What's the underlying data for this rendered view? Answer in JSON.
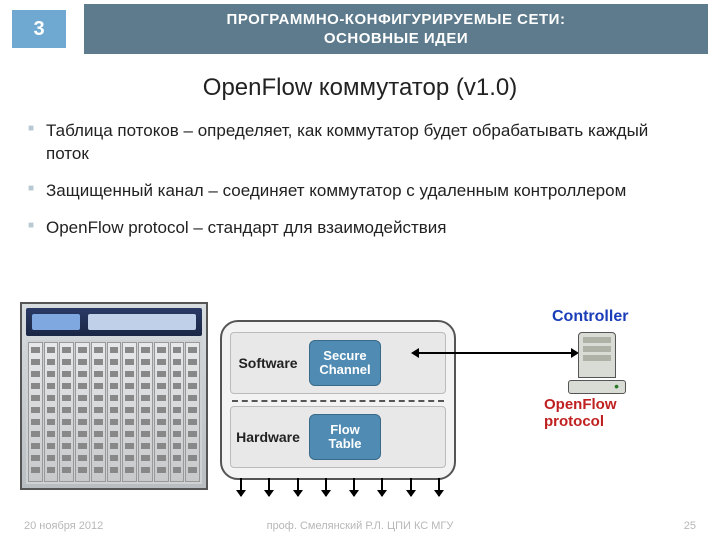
{
  "colors": {
    "page_num_bg": "#6fa9d1",
    "title_bar_bg": "#5d7b8c",
    "bullet_marker": "#b8c9d4",
    "chip_bg": "#4f8bb3",
    "controller_color": "#1a3db8",
    "protocol_color": "#c02020",
    "footer_color": "#b7b7b7"
  },
  "header": {
    "page_number": "3",
    "title_line1": "ПРОГРАММНО-КОНФИГУРИРУЕМЫЕ СЕТИ:",
    "title_line2": "ОСНОВНЫЕ ИДЕИ"
  },
  "subtitle": "OpenFlow коммутатор (v1.0)",
  "bullets": [
    "Таблица потоков – определяет, как коммутатор будет обрабатывать каждый поток",
    "Защищенный канал – соединяет коммутатор с удаленным контроллером",
    "OpenFlow protocol – стандарт для взаимодействия"
  ],
  "diagram": {
    "switch": {
      "software_label": "Software",
      "hardware_label": "Hardware",
      "secure_channel_l1": "Secure",
      "secure_channel_l2": "Channel",
      "flow_table_l1": "Flow",
      "flow_table_l2": "Table"
    },
    "controller_label": "Controller",
    "protocol_l1": "OpenFlow",
    "protocol_l2": "protocol",
    "hardware_slots": 11,
    "down_arrow_count": 8
  },
  "footer": {
    "date": "20 ноября 2012",
    "author": "проф. Смелянский Р.Л. ЦПИ КС МГУ",
    "slide_no": "25"
  }
}
